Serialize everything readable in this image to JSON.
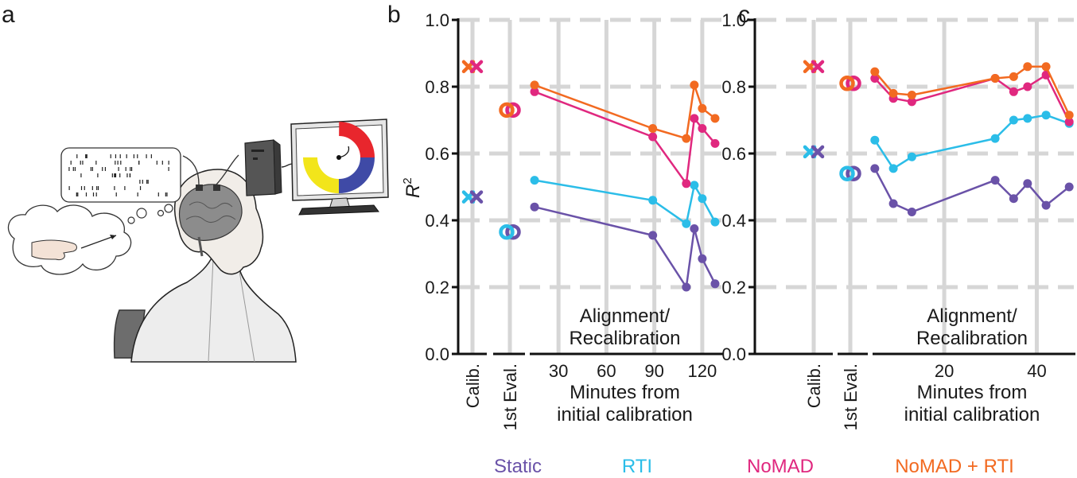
{
  "figure": {
    "panel_labels": [
      "a",
      "b",
      "c"
    ]
  },
  "colors": {
    "static": "#6a52a8",
    "rti": "#2bbde8",
    "nomad": "#e0287f",
    "nomad_rti": "#f26a21",
    "grid": "#d6d6d6",
    "axis": "#111111"
  },
  "illustration": {
    "description_icons": [
      "thought-bubble-icon",
      "raster-bubble-icon",
      "brain-icon",
      "computer-icon",
      "monitor-icon",
      "hand-icon"
    ],
    "task_colors": [
      "#e8262d",
      "#1a9e48",
      "#f2e51b",
      "#3f4aa6"
    ]
  },
  "legend": [
    {
      "key": "static",
      "label": "Static"
    },
    {
      "key": "rti",
      "label": "RTI"
    },
    {
      "key": "nomad",
      "label": "NoMAD"
    },
    {
      "key": "nomad_rti",
      "label": "NoMAD + RTI"
    }
  ],
  "chart_data": [
    {
      "panel": "b",
      "type": "line",
      "ylabel": "R",
      "ylabel_sup": "2",
      "ylim": [
        0.0,
        1.0
      ],
      "yticks": [
        "0.0",
        "0.2",
        "0.4",
        "0.6",
        "0.8",
        "1.0"
      ],
      "xlabel_line1": "Minutes from",
      "xlabel_line2": "initial calibration",
      "xlim": [
        10,
        133
      ],
      "xticks": [
        30,
        60,
        90,
        120
      ],
      "xtick_labels": [
        "30",
        "60",
        "90",
        "120"
      ],
      "grid": true,
      "section_labels": {
        "calib": "Calib.",
        "eval": "1st Eval."
      },
      "annotation_line1": "Alignment/",
      "annotation_line2": "Recalibration",
      "calib": {
        "static": 0.47,
        "rti": 0.47,
        "nomad": 0.86,
        "nomad_rti": 0.86
      },
      "first_eval": {
        "static": 0.365,
        "rti": 0.365,
        "nomad": 0.73,
        "nomad_rti": 0.73
      },
      "series": [
        {
          "key": "static",
          "name": "Static",
          "x": [
            15,
            89,
            110,
            115,
            120,
            128
          ],
          "values": [
            0.44,
            0.355,
            0.2,
            0.375,
            0.285,
            0.21
          ]
        },
        {
          "key": "rti",
          "name": "RTI",
          "x": [
            15,
            89,
            110,
            115,
            120,
            128
          ],
          "values": [
            0.52,
            0.46,
            0.39,
            0.505,
            0.465,
            0.395
          ]
        },
        {
          "key": "nomad",
          "name": "NoMAD",
          "x": [
            15,
            89,
            110,
            115,
            120,
            128
          ],
          "values": [
            0.785,
            0.65,
            0.51,
            0.705,
            0.675,
            0.63
          ]
        },
        {
          "key": "nomad_rti",
          "name": "NoMAD + RTI",
          "x": [
            15,
            89,
            110,
            115,
            120,
            128
          ],
          "values": [
            0.805,
            0.675,
            0.645,
            0.805,
            0.735,
            0.705
          ]
        }
      ]
    },
    {
      "panel": "c",
      "type": "line",
      "ylim": [
        0.0,
        1.0
      ],
      "yticks": [
        "0.0",
        "0.2",
        "0.4",
        "0.6",
        "0.8",
        "1.0"
      ],
      "xlabel_line1": "Minutes from",
      "xlabel_line2": "initial calibration",
      "xlim": [
        4.0,
        48.0
      ],
      "xticks": [
        20,
        40
      ],
      "xtick_labels": [
        "20",
        "40"
      ],
      "grid": true,
      "section_labels": {
        "calib": "Calib.",
        "eval": "1st Eval."
      },
      "annotation_line1": "Alignment/",
      "annotation_line2": "Recalibration",
      "calib": {
        "static": 0.605,
        "rti": 0.605,
        "nomad": 0.86,
        "nomad_rti": 0.86
      },
      "first_eval": {
        "static": 0.54,
        "rti": 0.54,
        "nomad": 0.81,
        "nomad_rti": 0.81
      },
      "series": [
        {
          "key": "static",
          "name": "Static",
          "x": [
            5,
            9,
            13,
            31,
            35,
            38,
            42,
            47
          ],
          "values": [
            0.555,
            0.45,
            0.425,
            0.52,
            0.465,
            0.51,
            0.445,
            0.5
          ]
        },
        {
          "key": "rti",
          "name": "RTI",
          "x": [
            5,
            9,
            13,
            31,
            35,
            38,
            42,
            47
          ],
          "values": [
            0.64,
            0.555,
            0.59,
            0.645,
            0.7,
            0.705,
            0.715,
            0.69
          ]
        },
        {
          "key": "nomad",
          "name": "NoMAD",
          "x": [
            5,
            9,
            13,
            31,
            35,
            38,
            42,
            47
          ],
          "values": [
            0.825,
            0.765,
            0.755,
            0.825,
            0.785,
            0.8,
            0.835,
            0.695
          ]
        },
        {
          "key": "nomad_rti",
          "name": "NoMAD + RTI",
          "x": [
            5,
            9,
            13,
            31,
            35,
            38,
            42,
            47
          ],
          "values": [
            0.845,
            0.78,
            0.775,
            0.825,
            0.83,
            0.86,
            0.86,
            0.715
          ]
        }
      ]
    }
  ]
}
